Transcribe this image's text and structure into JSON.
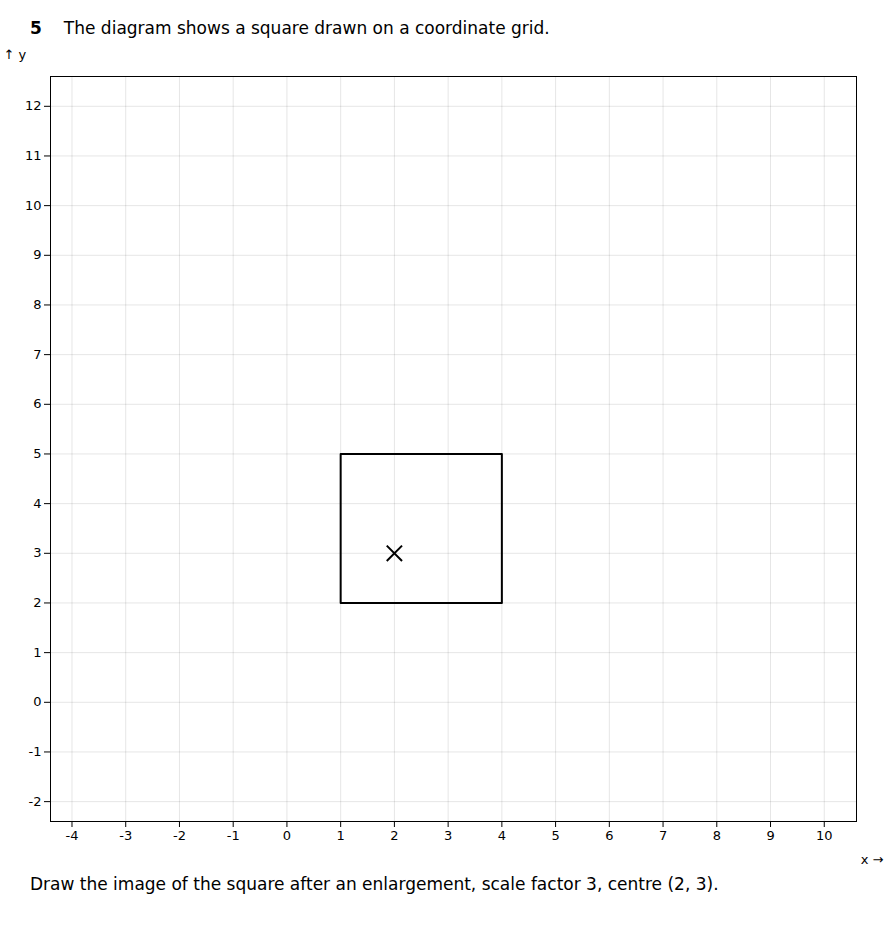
{
  "chart_data": {
    "type": "line",
    "title": "The diagram shows a square drawn on a coordinate grid.",
    "annotations": [
      "5",
      "Draw the image of the square after an enlargement, scale factor 3, centre (2, 3)."
    ],
    "xlabel": "x",
    "ylabel": "y",
    "xlim": [
      -4.4,
      10.6
    ],
    "ylim": [
      -2.4,
      12.6
    ],
    "xticks": [
      -4,
      -3,
      -2,
      -1,
      0,
      1,
      2,
      3,
      4,
      5,
      6,
      7,
      8,
      9,
      10
    ],
    "yticks": [
      -2,
      -1,
      0,
      1,
      2,
      3,
      4,
      5,
      6,
      7,
      8,
      9,
      10,
      11,
      12
    ],
    "grid": true,
    "series": [
      {
        "type": "line",
        "x": [
          1,
          4,
          4,
          1,
          1
        ],
        "values": [
          2,
          2,
          5,
          5,
          2
        ],
        "color": "#000000"
      },
      {
        "type": "scatter",
        "x": [
          2
        ],
        "values": [
          3
        ],
        "color": "#000000",
        "marker": "x"
      }
    ]
  }
}
